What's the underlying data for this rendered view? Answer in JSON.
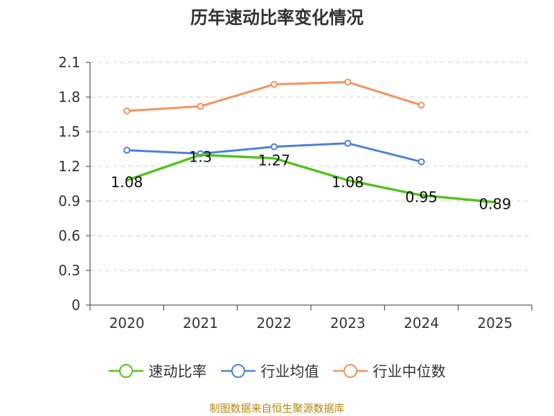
{
  "title": "历年速动比率变化情况",
  "source": "制图数据来自恒生聚源数据库",
  "chart_data": {
    "type": "line",
    "title": "历年速动比率变化情况",
    "xlabel": "",
    "ylabel": "",
    "categories": [
      "2020",
      "2021",
      "2022",
      "2023",
      "2024",
      "2025"
    ],
    "ylim": [
      0,
      2.1
    ],
    "yticks": [
      "0",
      "0.3",
      "0.6",
      "0.9",
      "1.2",
      "1.5",
      "1.8",
      "2.1"
    ],
    "grid": true,
    "legend_position": "bottom",
    "series": [
      {
        "name": "速动比率",
        "color": "#52c41a",
        "values": [
          1.08,
          1.3,
          1.27,
          1.08,
          0.95,
          0.89
        ],
        "labels": [
          "1.08",
          "1.3",
          "1.27",
          "1.08",
          "0.95",
          "0.89"
        ],
        "show_markers": false
      },
      {
        "name": "行业均值",
        "color": "#4a7fdb",
        "values": [
          1.34,
          1.31,
          1.37,
          1.4,
          1.24,
          null
        ],
        "show_markers": true
      },
      {
        "name": "行业中位数",
        "color": "#f5915a",
        "values": [
          1.68,
          1.72,
          1.91,
          1.93,
          1.73,
          null
        ],
        "show_markers": true
      }
    ]
  }
}
